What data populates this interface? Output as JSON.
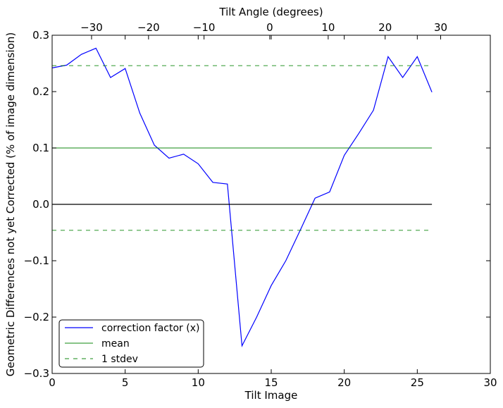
{
  "chart_data": {
    "type": "line",
    "xlabel": "Tilt Image",
    "ylabel": "Geometric Differences not yet Corrected (% of image dimension)",
    "top_axis_label": "Tilt Angle (degrees)",
    "xlim": [
      0,
      30
    ],
    "ylim": [
      -0.3,
      0.3
    ],
    "x_ticks": [
      0,
      5,
      10,
      15,
      20,
      25,
      30
    ],
    "y_ticks": [
      -0.3,
      -0.2,
      -0.1,
      0.0,
      0.1,
      0.2,
      0.3
    ],
    "x_tick_labels": [
      "0",
      "5",
      "10",
      "15",
      "20",
      "25",
      "30"
    ],
    "y_tick_labels": [
      "−0.3",
      "−0.2",
      "−0.1",
      "0.0",
      "0.1",
      "0.2",
      "0.3"
    ],
    "top_ticks": [
      {
        "x": 2.7,
        "label": "−30"
      },
      {
        "x": 6.6,
        "label": "−20"
      },
      {
        "x": 10.4,
        "label": "−10"
      },
      {
        "x": 14.9,
        "label": "0"
      },
      {
        "x": 18.9,
        "label": "10"
      },
      {
        "x": 22.8,
        "label": "20"
      },
      {
        "x": 26.6,
        "label": "30"
      }
    ],
    "series": [
      {
        "name": "correction factor (x)",
        "color": "#0000ff",
        "style": "solid",
        "x": [
          0,
          1,
          2,
          3,
          4,
          5,
          6,
          7,
          8,
          9,
          10,
          11,
          12,
          13,
          14,
          15,
          16,
          17,
          18,
          19,
          20,
          21,
          22,
          23,
          24,
          25,
          26
        ],
        "y": [
          0.242,
          0.247,
          0.266,
          0.277,
          0.225,
          0.241,
          0.162,
          0.105,
          0.082,
          0.089,
          0.072,
          0.039,
          0.036,
          -0.251,
          -0.2,
          -0.144,
          -0.1,
          -0.045,
          0.011,
          0.022,
          0.087,
          0.126,
          0.167,
          0.262,
          0.225,
          0.262,
          0.199
        ]
      },
      {
        "name": "mean",
        "color": "#008000",
        "style": "solid",
        "x": [
          0,
          26
        ],
        "y": [
          0.1,
          0.1
        ]
      },
      {
        "name": "1 stdev",
        "color": "#008000",
        "style": "dashed",
        "x": [
          0,
          26
        ],
        "y": [
          0.246,
          0.246
        ]
      },
      {
        "color": "#008000",
        "style": "dashed",
        "x": [
          0,
          26
        ],
        "y": [
          -0.046,
          -0.046
        ]
      },
      {
        "color": "#000000",
        "style": "solid",
        "x": [
          0,
          26
        ],
        "y": [
          0.0,
          0.0
        ]
      }
    ],
    "legend": {
      "position": "lower-left",
      "entries": [
        {
          "label": "correction factor (x)",
          "color": "#0000ff",
          "style": "solid"
        },
        {
          "label": "mean",
          "color": "#008000",
          "style": "solid"
        },
        {
          "label": "1 stdev",
          "color": "#008000",
          "style": "dashed"
        }
      ]
    },
    "grid": false
  }
}
